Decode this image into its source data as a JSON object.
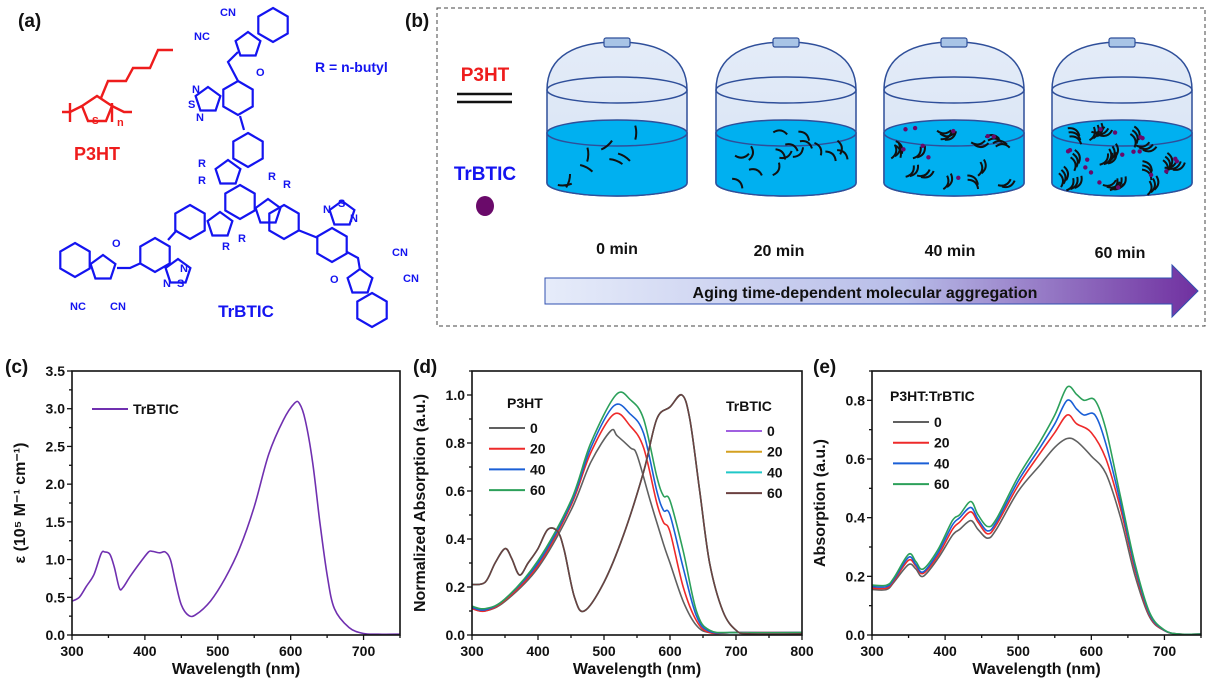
{
  "panels": {
    "a": {
      "label": "(a)",
      "p3ht_name": "P3HT",
      "trbtic_name": "TrBTIC",
      "r_definition": "R = n-butyl",
      "structure_lettering": [
        "CN",
        "NC",
        "O",
        "N",
        "S",
        "R",
        "n"
      ],
      "colors": {
        "p3ht": "#ee1c1c",
        "trbtic": "#1414f0"
      }
    },
    "b": {
      "label": "(b)",
      "legend_p3ht": "P3HT",
      "legend_trbtic": "TrBTIC",
      "times": [
        "0 min",
        "20 min",
        "40 min",
        "60 min"
      ],
      "arrow_text": "Aging time-dependent molecular aggregation",
      "colors": {
        "solution": "#00b0f0",
        "trbtic_dot": "#6a0a6a",
        "arrow_start": "#e6ecfa",
        "arrow_end": "#7030a0"
      }
    },
    "c": {
      "label": "(c)"
    },
    "d": {
      "label": "(d)"
    },
    "e": {
      "label": "(e)"
    }
  },
  "chart_data": [
    {
      "type": "line",
      "panel": "c",
      "xlabel": "Wavelength (nm)",
      "ylabel": "ε (10⁵ M⁻¹ cm⁻¹)",
      "xlim": [
        300,
        750
      ],
      "ylim": [
        0,
        3.5
      ],
      "xticks": [
        300,
        400,
        500,
        600,
        700
      ],
      "yticks": [
        0.0,
        0.5,
        1.0,
        1.5,
        2.0,
        2.5,
        3.0,
        3.5
      ],
      "ytick_decimals": 1,
      "grid": false,
      "legend_title": "",
      "legend_placement": "top-left",
      "series": [
        {
          "name": "TrBTIC",
          "color": "#7030b0",
          "x": [
            300,
            310,
            320,
            330,
            340,
            345,
            352,
            358,
            365,
            370,
            380,
            395,
            405,
            410,
            420,
            428,
            435,
            442,
            450,
            460,
            470,
            490,
            510,
            530,
            550,
            570,
            590,
            605,
            612,
            620,
            630,
            640,
            650,
            660,
            680,
            700,
            720,
            750
          ],
          "y": [
            0.45,
            0.5,
            0.65,
            0.8,
            1.08,
            1.1,
            1.07,
            0.9,
            0.62,
            0.63,
            0.78,
            0.98,
            1.1,
            1.11,
            1.09,
            1.1,
            1.0,
            0.7,
            0.4,
            0.26,
            0.27,
            0.45,
            0.75,
            1.15,
            1.7,
            2.4,
            2.85,
            3.07,
            3.07,
            2.85,
            2.3,
            1.5,
            0.8,
            0.35,
            0.1,
            0.02,
            0.01,
            0.01
          ]
        }
      ]
    },
    {
      "type": "line",
      "panel": "d",
      "xlabel": "Wavelength (nm)",
      "ylabel": "Normalized Absorption (a.u.)",
      "xlim": [
        300,
        800
      ],
      "ylim": [
        0,
        1.1
      ],
      "xticks": [
        300,
        400,
        500,
        600,
        700,
        800
      ],
      "yticks": [
        0.0,
        0.2,
        0.4,
        0.6,
        0.8,
        1.0
      ],
      "ytick_decimals": 1,
      "grid": false,
      "legend_groups": [
        {
          "title": "P3HT",
          "placement": "top-left",
          "series": [
            0,
            1,
            2,
            3
          ]
        },
        {
          "title": "TrBTIC",
          "placement": "top-right",
          "series": [
            4,
            5,
            6,
            7
          ]
        }
      ],
      "series": [
        {
          "name": "0",
          "group": "P3HT",
          "color": "#606060",
          "x": [
            300,
            320,
            350,
            400,
            450,
            480,
            510,
            520,
            540,
            550,
            570,
            590,
            600,
            620,
            640,
            660,
            700,
            800
          ],
          "y": [
            0.11,
            0.1,
            0.14,
            0.28,
            0.52,
            0.72,
            0.85,
            0.83,
            0.78,
            0.75,
            0.56,
            0.38,
            0.3,
            0.14,
            0.04,
            0.01,
            0.01,
            0.01
          ]
        },
        {
          "name": "20",
          "group": "P3HT",
          "color": "#ee2a2a",
          "x": [
            300,
            320,
            350,
            400,
            450,
            480,
            515,
            540,
            560,
            580,
            590,
            600,
            620,
            640,
            660,
            700,
            800
          ],
          "y": [
            0.11,
            0.1,
            0.145,
            0.29,
            0.54,
            0.76,
            0.92,
            0.87,
            0.78,
            0.55,
            0.47,
            0.43,
            0.2,
            0.06,
            0.01,
            0.01,
            0.01
          ]
        },
        {
          "name": "40",
          "group": "P3HT",
          "color": "#1a5fd6",
          "x": [
            300,
            320,
            350,
            400,
            450,
            480,
            515,
            540,
            560,
            580,
            590,
            600,
            620,
            640,
            660,
            700,
            800
          ],
          "y": [
            0.115,
            0.105,
            0.15,
            0.3,
            0.55,
            0.78,
            0.955,
            0.92,
            0.84,
            0.6,
            0.52,
            0.5,
            0.28,
            0.08,
            0.015,
            0.01,
            0.01
          ]
        },
        {
          "name": "60",
          "group": "P3HT",
          "color": "#2ca05a",
          "x": [
            300,
            320,
            350,
            400,
            450,
            480,
            518,
            540,
            560,
            580,
            590,
            600,
            620,
            640,
            660,
            700,
            800
          ],
          "y": [
            0.12,
            0.11,
            0.15,
            0.31,
            0.56,
            0.8,
            1.0,
            0.98,
            0.9,
            0.66,
            0.58,
            0.56,
            0.35,
            0.1,
            0.02,
            0.01,
            0.01
          ]
        },
        {
          "name": "0",
          "group": "TrBTIC",
          "color": "#a060e0",
          "x": [
            300,
            320,
            335,
            350,
            360,
            372,
            385,
            400,
            415,
            430,
            440,
            455,
            470,
            500,
            530,
            560,
            580,
            600,
            618,
            630,
            645,
            660,
            680,
            700,
            720,
            800
          ],
          "y": [
            0.21,
            0.22,
            0.3,
            0.36,
            0.32,
            0.25,
            0.3,
            0.36,
            0.44,
            0.43,
            0.35,
            0.16,
            0.1,
            0.22,
            0.42,
            0.68,
            0.9,
            0.95,
            1.0,
            0.9,
            0.6,
            0.3,
            0.1,
            0.02,
            0.005,
            0.005
          ]
        },
        {
          "name": "20",
          "group": "TrBTIC",
          "color": "#d4a020",
          "x": [
            300,
            320,
            335,
            350,
            360,
            372,
            385,
            400,
            415,
            430,
            440,
            455,
            470,
            500,
            530,
            560,
            580,
            600,
            618,
            630,
            645,
            660,
            680,
            700,
            720,
            800
          ],
          "y": [
            0.21,
            0.22,
            0.3,
            0.36,
            0.32,
            0.25,
            0.3,
            0.36,
            0.44,
            0.43,
            0.35,
            0.16,
            0.1,
            0.22,
            0.42,
            0.68,
            0.9,
            0.95,
            1.0,
            0.9,
            0.6,
            0.3,
            0.1,
            0.02,
            0.005,
            0.005
          ]
        },
        {
          "name": "40",
          "group": "TrBTIC",
          "color": "#20c8c8",
          "x": [
            300,
            320,
            335,
            350,
            360,
            372,
            385,
            400,
            415,
            430,
            440,
            455,
            470,
            500,
            530,
            560,
            580,
            600,
            618,
            630,
            645,
            660,
            680,
            700,
            720,
            800
          ],
          "y": [
            0.21,
            0.22,
            0.3,
            0.36,
            0.32,
            0.25,
            0.3,
            0.36,
            0.44,
            0.43,
            0.35,
            0.16,
            0.1,
            0.22,
            0.42,
            0.68,
            0.9,
            0.95,
            1.0,
            0.9,
            0.6,
            0.3,
            0.1,
            0.02,
            0.005,
            0.005
          ]
        },
        {
          "name": "60",
          "group": "TrBTIC",
          "color": "#6b4040",
          "x": [
            300,
            320,
            335,
            350,
            360,
            372,
            385,
            400,
            415,
            430,
            440,
            455,
            470,
            500,
            530,
            560,
            580,
            600,
            618,
            630,
            645,
            660,
            680,
            700,
            720,
            800
          ],
          "y": [
            0.21,
            0.22,
            0.3,
            0.36,
            0.32,
            0.25,
            0.3,
            0.36,
            0.44,
            0.43,
            0.35,
            0.16,
            0.1,
            0.22,
            0.42,
            0.68,
            0.9,
            0.95,
            1.0,
            0.9,
            0.6,
            0.3,
            0.1,
            0.02,
            0.005,
            0.005
          ]
        }
      ]
    },
    {
      "type": "line",
      "panel": "e",
      "xlabel": "Wavelength (nm)",
      "ylabel": "Absorption (a.u.)",
      "xlim": [
        300,
        750
      ],
      "ylim": [
        0,
        0.9
      ],
      "xticks": [
        300,
        400,
        500,
        600,
        700
      ],
      "yticks": [
        0.0,
        0.2,
        0.4,
        0.6,
        0.8
      ],
      "ytick_decimals": 1,
      "grid": false,
      "legend_title": "P3HT:TrBTIC",
      "legend_placement": "top-left",
      "series": [
        {
          "name": "0",
          "color": "#606060",
          "x": [
            300,
            320,
            330,
            350,
            360,
            370,
            390,
            410,
            420,
            435,
            445,
            458,
            470,
            500,
            530,
            550,
            567,
            580,
            600,
            620,
            640,
            660,
            680,
            700,
            720,
            750
          ],
          "y": [
            0.155,
            0.155,
            0.18,
            0.24,
            0.225,
            0.2,
            0.26,
            0.34,
            0.36,
            0.39,
            0.36,
            0.33,
            0.36,
            0.49,
            0.58,
            0.64,
            0.67,
            0.66,
            0.61,
            0.55,
            0.4,
            0.2,
            0.06,
            0.015,
            0.003,
            0.003
          ]
        },
        {
          "name": "20",
          "color": "#ee2a2a",
          "x": [
            300,
            320,
            330,
            350,
            360,
            370,
            390,
            410,
            420,
            435,
            445,
            458,
            470,
            500,
            530,
            550,
            567,
            580,
            600,
            620,
            640,
            660,
            680,
            700,
            720,
            750
          ],
          "y": [
            0.16,
            0.16,
            0.185,
            0.255,
            0.235,
            0.21,
            0.27,
            0.36,
            0.385,
            0.42,
            0.385,
            0.345,
            0.375,
            0.51,
            0.62,
            0.69,
            0.75,
            0.72,
            0.69,
            0.6,
            0.43,
            0.22,
            0.065,
            0.015,
            0.003,
            0.003
          ]
        },
        {
          "name": "40",
          "color": "#1a5fd6",
          "x": [
            300,
            320,
            330,
            350,
            360,
            370,
            390,
            410,
            420,
            435,
            445,
            458,
            470,
            500,
            530,
            550,
            567,
            580,
            590,
            605,
            620,
            640,
            660,
            680,
            700,
            720,
            750
          ],
          "y": [
            0.165,
            0.165,
            0.19,
            0.265,
            0.24,
            0.215,
            0.28,
            0.375,
            0.4,
            0.435,
            0.395,
            0.355,
            0.385,
            0.525,
            0.64,
            0.72,
            0.8,
            0.77,
            0.75,
            0.75,
            0.65,
            0.45,
            0.23,
            0.07,
            0.016,
            0.003,
            0.003
          ]
        },
        {
          "name": "60",
          "color": "#2ca05a",
          "x": [
            300,
            320,
            330,
            350,
            360,
            370,
            390,
            410,
            420,
            435,
            445,
            458,
            470,
            500,
            530,
            550,
            567,
            580,
            590,
            605,
            620,
            640,
            660,
            680,
            700,
            720,
            750
          ],
          "y": [
            0.17,
            0.17,
            0.195,
            0.275,
            0.25,
            0.225,
            0.29,
            0.39,
            0.41,
            0.455,
            0.41,
            0.37,
            0.395,
            0.54,
            0.66,
            0.75,
            0.845,
            0.82,
            0.8,
            0.8,
            0.7,
            0.47,
            0.24,
            0.075,
            0.017,
            0.003,
            0.003
          ]
        }
      ]
    }
  ]
}
